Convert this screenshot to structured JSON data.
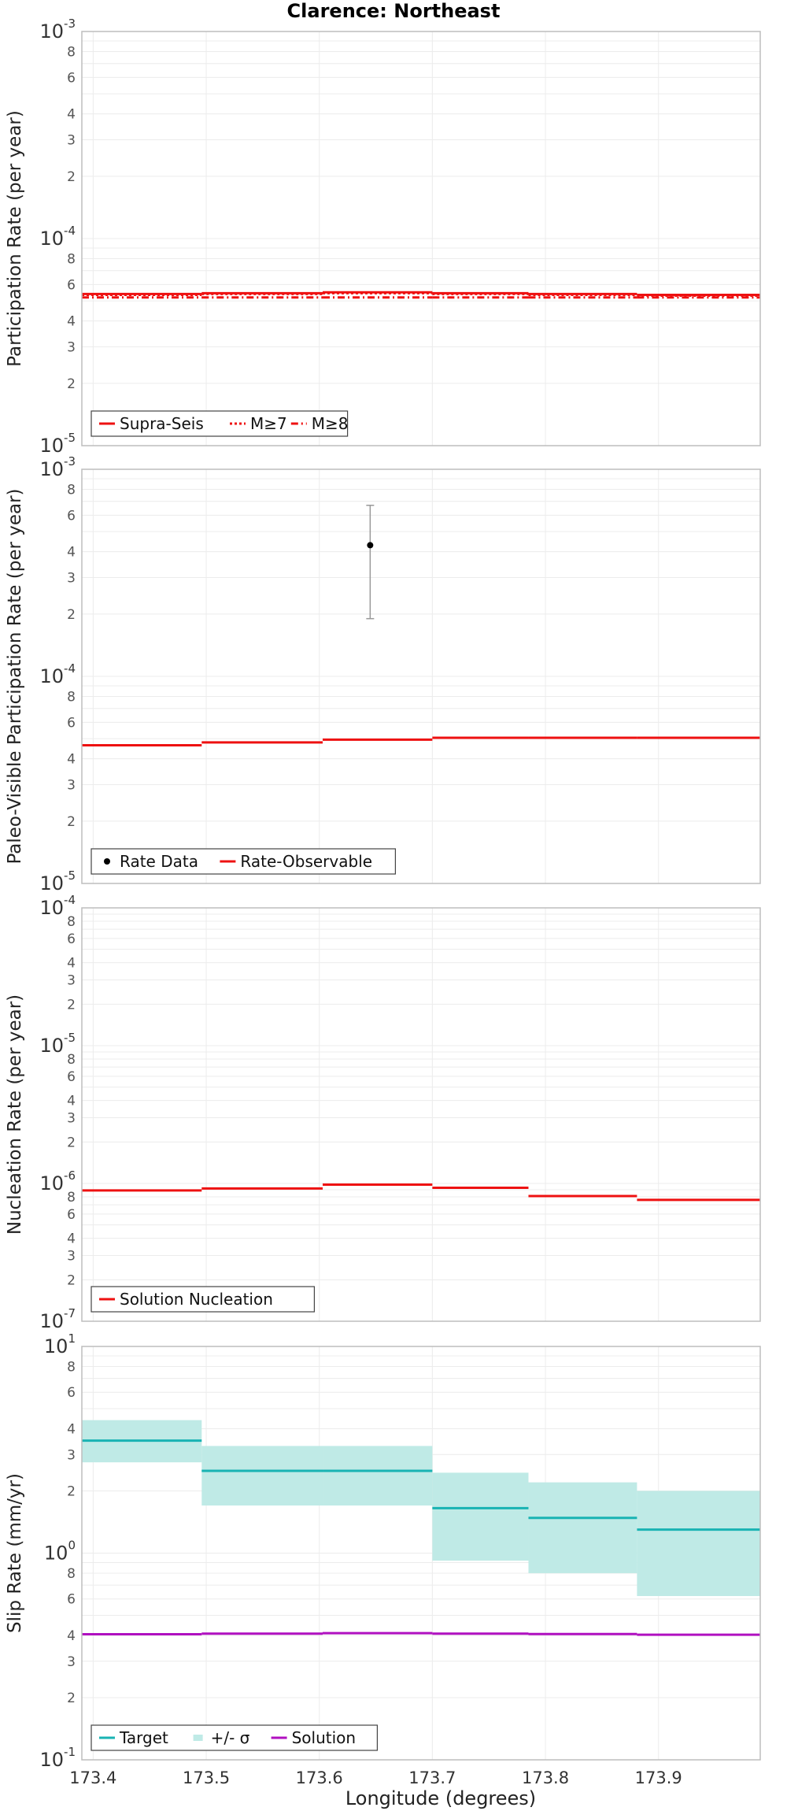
{
  "figure": {
    "title": "Clarence: Northeast",
    "xlabel": "Longitude (degrees)"
  },
  "colors": {
    "red": "#ee1111",
    "cyan": "#19b3b3",
    "cyan_band": "#bfeae6",
    "magenta": "#b010c0",
    "black": "#000000",
    "grid": "#ececec"
  },
  "chart_data": [
    {
      "type": "line",
      "ylabel": "Participation Rate (per year)",
      "yscale": "log",
      "ylim": [
        1e-05,
        0.001
      ],
      "xlim": [
        173.39,
        173.99
      ],
      "xticks": [
        173.4,
        173.5,
        173.6,
        173.7,
        173.8,
        173.9
      ],
      "grid": true,
      "legend_position": "bottom-left",
      "legend": [
        "Supra-Seis",
        "M≥7",
        "M≥8"
      ],
      "segments_x": [
        173.39,
        173.496,
        173.603,
        173.7,
        173.785,
        173.881,
        173.99
      ],
      "series": [
        {
          "name": "Supra-Seis",
          "style": "solid",
          "values": [
            5.4e-05,
            5.45e-05,
            5.5e-05,
            5.45e-05,
            5.4e-05,
            5.35e-05
          ]
        },
        {
          "name": "M≥7",
          "style": "dotted",
          "values": [
            5.35e-05,
            5.4e-05,
            5.45e-05,
            5.4e-05,
            5.35e-05,
            5.3e-05
          ]
        },
        {
          "name": "M≥8",
          "style": "dashdot",
          "values": [
            5.2e-05,
            5.2e-05,
            5.2e-05,
            5.2e-05,
            5.2e-05,
            5.2e-05
          ]
        }
      ]
    },
    {
      "type": "line",
      "ylabel": "Paleo-Visible Participation Rate (per year)",
      "yscale": "log",
      "ylim": [
        1e-05,
        0.001
      ],
      "xlim": [
        173.39,
        173.99
      ],
      "xticks": [
        173.4,
        173.5,
        173.6,
        173.7,
        173.8,
        173.9
      ],
      "grid": true,
      "legend_position": "bottom-left",
      "legend": [
        "Rate Data",
        "Rate-Observable"
      ],
      "segments_x": [
        173.39,
        173.496,
        173.603,
        173.7,
        173.785,
        173.881,
        173.99
      ],
      "series": [
        {
          "name": "Rate-Observable",
          "style": "solid",
          "values": [
            4.65e-05,
            4.8e-05,
            4.95e-05,
            5.05e-05,
            5.05e-05,
            5.05e-05
          ]
        }
      ],
      "points": [
        {
          "name": "Rate Data",
          "x": 173.645,
          "y": 0.00043,
          "ylow": 0.00019,
          "yhigh": 0.00067
        }
      ]
    },
    {
      "type": "line",
      "ylabel": "Nucleation Rate (per year)",
      "yscale": "log",
      "ylim": [
        1e-07,
        0.0001
      ],
      "xlim": [
        173.39,
        173.99
      ],
      "xticks": [
        173.4,
        173.5,
        173.6,
        173.7,
        173.8,
        173.9
      ],
      "grid": true,
      "legend_position": "bottom-left",
      "legend": [
        "Solution Nucleation"
      ],
      "segments_x": [
        173.39,
        173.496,
        173.603,
        173.7,
        173.785,
        173.881,
        173.99
      ],
      "series": [
        {
          "name": "Solution Nucleation",
          "style": "solid",
          "values": [
            8.9e-07,
            9.2e-07,
            9.8e-07,
            9.3e-07,
            8.1e-07,
            7.6e-07
          ]
        }
      ]
    },
    {
      "type": "line",
      "ylabel": "Slip Rate (mm/yr)",
      "yscale": "log",
      "ylim": [
        0.1,
        10
      ],
      "xlim": [
        173.39,
        173.99
      ],
      "xticks": [
        173.4,
        173.5,
        173.6,
        173.7,
        173.8,
        173.9
      ],
      "grid": true,
      "legend_position": "bottom-left",
      "legend": [
        "Target",
        "+/- σ",
        "Solution"
      ],
      "segments_x": [
        173.39,
        173.496,
        173.603,
        173.7,
        173.785,
        173.881,
        173.99
      ],
      "band": {
        "name": "+/- σ",
        "low": [
          2.75,
          1.7,
          1.7,
          0.92,
          0.8,
          0.62
        ],
        "high": [
          4.4,
          3.3,
          3.3,
          2.45,
          2.2,
          2.0
        ]
      },
      "series": [
        {
          "name": "Target",
          "style": "solid",
          "color": "cyan",
          "values": [
            3.5,
            2.5,
            2.5,
            1.65,
            1.48,
            1.3
          ]
        },
        {
          "name": "Solution",
          "style": "solid",
          "color": "magenta",
          "values": [
            0.405,
            0.408,
            0.41,
            0.408,
            0.406,
            0.403
          ]
        }
      ]
    }
  ]
}
